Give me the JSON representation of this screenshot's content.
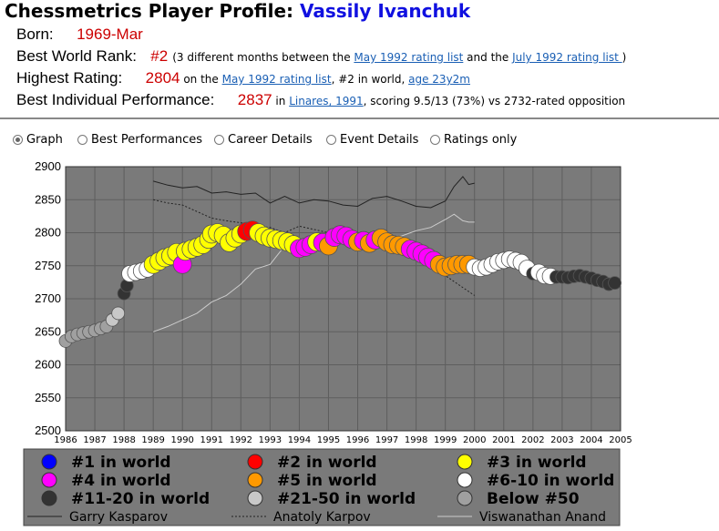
{
  "header": {
    "title_prefix": "Chessmetrics Player Profile: ",
    "player_name": "Vassily Ivanchuk"
  },
  "profile": {
    "born_label": "Born:",
    "born_value": "1969-Mar",
    "rank_label": "Best World Rank:",
    "rank_value": "#2",
    "rank_text1": "(3 different months between the ",
    "rank_link1": "May 1992 rating list",
    "rank_text2": " and the ",
    "rank_link2": "July 1992 rating list ",
    "rank_text3": ")",
    "high_label": "Highest Rating:",
    "high_value": "2804",
    "high_text1": " on the ",
    "high_link1": "May 1992 rating list",
    "high_text2": ", #2 in world, ",
    "high_link2": "age 23y2m",
    "perf_label": "Best Individual Performance:",
    "perf_value": "2837",
    "perf_text1": " in ",
    "perf_link1": "Linares, 1991",
    "perf_text2": ", scoring 9.5/13 (73%) vs 2732-rated opposition"
  },
  "view_options": [
    {
      "label": "Graph",
      "selected": true
    },
    {
      "label": "Best Performances",
      "selected": false
    },
    {
      "label": "Career Details",
      "selected": false
    },
    {
      "label": "Event Details",
      "selected": false
    },
    {
      "label": "Ratings only",
      "selected": false
    }
  ],
  "colors": {
    "plot_bg": "#7a7a7a",
    "grid": "#5e5e5e",
    "legend_bg": "#7a7a7a",
    "rank1": "#0000ff",
    "rank2": "#ff0000",
    "rank3": "#ffff00",
    "rank4": "#ff00ff",
    "rank5": "#ff9900",
    "rank6_10": "#ffffff",
    "rank11_20": "#333333",
    "rank21_50": "#c8c8c8",
    "below50": "#a0a0a0"
  },
  "chart_data": {
    "type": "scatter",
    "xlim": [
      1986,
      2005
    ],
    "ylim": [
      2500,
      2900
    ],
    "x_ticks": [
      "1986",
      "1987",
      "1988",
      "1989",
      "1990",
      "1991",
      "1992",
      "1993",
      "1994",
      "1995",
      "1996",
      "1997",
      "1998",
      "1999",
      "2000",
      "2001",
      "2002",
      "2003",
      "2004",
      "2005"
    ],
    "y_ticks": [
      "2500",
      "2550",
      "2600",
      "2650",
      "2700",
      "2750",
      "2800",
      "2850",
      "2900"
    ],
    "grid": true,
    "legend_placement": "bottom",
    "legend": [
      {
        "label": "#1 in world",
        "color": "#0000ff",
        "kind": "marker"
      },
      {
        "label": "#2 in world",
        "color": "#ff0000",
        "kind": "marker"
      },
      {
        "label": "#3 in world",
        "color": "#ffff00",
        "kind": "marker"
      },
      {
        "label": "#4 in world",
        "color": "#ff00ff",
        "kind": "marker"
      },
      {
        "label": "#5 in world",
        "color": "#ff9900",
        "kind": "marker"
      },
      {
        "label": "#6-10 in world",
        "color": "#ffffff",
        "kind": "marker"
      },
      {
        "label": "#11-20 in world",
        "color": "#333333",
        "kind": "marker"
      },
      {
        "label": "#21-50 in world",
        "color": "#c8c8c8",
        "kind": "marker"
      },
      {
        "label": "Below #50",
        "color": "#a0a0a0",
        "kind": "marker"
      },
      {
        "label": "Garry Kasparov",
        "color": "#222222",
        "kind": "solid"
      },
      {
        "label": "Anatoly Karpov",
        "color": "#222222",
        "kind": "dotted"
      },
      {
        "label": "Viswanathan Anand",
        "color": "#cccccc",
        "kind": "solid"
      }
    ],
    "ivanchuk": [
      [
        1986.0,
        2636,
        "below50"
      ],
      [
        1986.2,
        2643,
        "below50"
      ],
      [
        1986.4,
        2646,
        "below50"
      ],
      [
        1986.6,
        2648,
        "below50"
      ],
      [
        1986.8,
        2650,
        "below50"
      ],
      [
        1987.0,
        2652,
        "below50"
      ],
      [
        1987.2,
        2655,
        "below50"
      ],
      [
        1987.4,
        2658,
        "below50"
      ],
      [
        1987.6,
        2668,
        "r21_50"
      ],
      [
        1987.8,
        2678,
        "r21_50"
      ],
      [
        1988.0,
        2708,
        "r11_20"
      ],
      [
        1988.1,
        2720,
        "r11_20"
      ],
      [
        1988.2,
        2738,
        "r6_10"
      ],
      [
        1988.4,
        2740,
        "r6_10"
      ],
      [
        1988.6,
        2742,
        "r6_10"
      ],
      [
        1988.8,
        2745,
        "r6_10"
      ],
      [
        1989.0,
        2752,
        "r3"
      ],
      [
        1989.2,
        2757,
        "r3"
      ],
      [
        1989.4,
        2762,
        "r3"
      ],
      [
        1989.6,
        2765,
        "r3"
      ],
      [
        1989.8,
        2770,
        "r3"
      ],
      [
        1990.0,
        2752,
        "r4"
      ],
      [
        1990.1,
        2772,
        "r3"
      ],
      [
        1990.3,
        2775,
        "r3"
      ],
      [
        1990.5,
        2778,
        "r3"
      ],
      [
        1990.7,
        2782,
        "r3"
      ],
      [
        1990.9,
        2790,
        "r3"
      ],
      [
        1991.0,
        2798,
        "r3"
      ],
      [
        1991.2,
        2800,
        "r3"
      ],
      [
        1991.4,
        2796,
        "r3"
      ],
      [
        1991.6,
        2785,
        "r3"
      ],
      [
        1991.8,
        2792,
        "r3"
      ],
      [
        1992.0,
        2798,
        "r3"
      ],
      [
        1992.2,
        2802,
        "r2"
      ],
      [
        1992.4,
        2804,
        "r2"
      ],
      [
        1992.6,
        2800,
        "r3"
      ],
      [
        1992.8,
        2795,
        "r3"
      ],
      [
        1993.0,
        2792,
        "r3"
      ],
      [
        1993.2,
        2790,
        "r3"
      ],
      [
        1993.4,
        2788,
        "r3"
      ],
      [
        1993.6,
        2786,
        "r3"
      ],
      [
        1993.8,
        2782,
        "r3"
      ],
      [
        1994.0,
        2776,
        "r4"
      ],
      [
        1994.2,
        2778,
        "r4"
      ],
      [
        1994.4,
        2782,
        "r4"
      ],
      [
        1994.6,
        2786,
        "r3"
      ],
      [
        1994.8,
        2785,
        "r4"
      ],
      [
        1995.0,
        2780,
        "r5"
      ],
      [
        1995.2,
        2793,
        "r4"
      ],
      [
        1995.4,
        2797,
        "r4"
      ],
      [
        1995.6,
        2795,
        "r4"
      ],
      [
        1995.8,
        2790,
        "r4"
      ],
      [
        1996.0,
        2786,
        "r5"
      ],
      [
        1996.2,
        2788,
        "r4"
      ],
      [
        1996.4,
        2784,
        "r5"
      ],
      [
        1996.6,
        2789,
        "r4"
      ],
      [
        1996.8,
        2792,
        "r5"
      ],
      [
        1997.0,
        2786,
        "r5"
      ],
      [
        1997.2,
        2782,
        "r5"
      ],
      [
        1997.4,
        2781,
        "r5"
      ],
      [
        1997.6,
        2779,
        "r5"
      ],
      [
        1997.8,
        2775,
        "r4"
      ],
      [
        1998.0,
        2772,
        "r4"
      ],
      [
        1998.2,
        2768,
        "r4"
      ],
      [
        1998.4,
        2763,
        "r4"
      ],
      [
        1998.6,
        2758,
        "r4"
      ],
      [
        1998.8,
        2752,
        "r5"
      ],
      [
        1999.0,
        2748,
        "r5"
      ],
      [
        1999.2,
        2750,
        "r5"
      ],
      [
        1999.4,
        2752,
        "r5"
      ],
      [
        1999.6,
        2752,
        "r5"
      ],
      [
        1999.8,
        2752,
        "r5"
      ],
      [
        2000.0,
        2748,
        "r6_10"
      ],
      [
        2000.2,
        2746,
        "r6_10"
      ],
      [
        2000.4,
        2748,
        "r6_10"
      ],
      [
        2000.6,
        2752,
        "r6_10"
      ],
      [
        2000.8,
        2756,
        "r6_10"
      ],
      [
        2001.0,
        2758,
        "r6_10"
      ],
      [
        2001.2,
        2760,
        "r6_10"
      ],
      [
        2001.4,
        2758,
        "r6_10"
      ],
      [
        2001.6,
        2755,
        "r6_10"
      ],
      [
        2001.8,
        2746,
        "r6_10"
      ],
      [
        2002.0,
        2738,
        "r11_20"
      ],
      [
        2002.2,
        2740,
        "r6_10"
      ],
      [
        2002.4,
        2735,
        "r6_10"
      ],
      [
        2002.6,
        2734,
        "r6_10"
      ],
      [
        2002.8,
        2733,
        "r11_20"
      ],
      [
        2003.0,
        2733,
        "r11_20"
      ],
      [
        2003.2,
        2732,
        "r11_20"
      ],
      [
        2003.4,
        2734,
        "r11_20"
      ],
      [
        2003.6,
        2735,
        "r11_20"
      ],
      [
        2003.8,
        2733,
        "r11_20"
      ],
      [
        2004.0,
        2731,
        "r11_20"
      ],
      [
        2004.2,
        2728,
        "r11_20"
      ],
      [
        2004.4,
        2726,
        "r11_20"
      ],
      [
        2004.6,
        2722,
        "r11_20"
      ],
      [
        2004.8,
        2724,
        "r11_20"
      ]
    ],
    "kasparov": [
      [
        1989.0,
        2878
      ],
      [
        1989.5,
        2872
      ],
      [
        1990.0,
        2868
      ],
      [
        1990.5,
        2870
      ],
      [
        1991.0,
        2860
      ],
      [
        1991.5,
        2862
      ],
      [
        1992.0,
        2858
      ],
      [
        1992.5,
        2860
      ],
      [
        1993.0,
        2845
      ],
      [
        1993.5,
        2855
      ],
      [
        1994.0,
        2845
      ],
      [
        1994.5,
        2850
      ],
      [
        1995.0,
        2848
      ],
      [
        1995.5,
        2842
      ],
      [
        1996.0,
        2840
      ],
      [
        1996.5,
        2852
      ],
      [
        1997.0,
        2855
      ],
      [
        1997.5,
        2848
      ],
      [
        1998.0,
        2840
      ],
      [
        1998.5,
        2838
      ],
      [
        1999.0,
        2848
      ],
      [
        1999.3,
        2870
      ],
      [
        1999.6,
        2885
      ],
      [
        1999.8,
        2873
      ],
      [
        2000.0,
        2875
      ]
    ],
    "karpov": [
      [
        1989.0,
        2850
      ],
      [
        1989.5,
        2845
      ],
      [
        1990.0,
        2842
      ],
      [
        1990.5,
        2832
      ],
      [
        1991.0,
        2822
      ],
      [
        1991.5,
        2818
      ],
      [
        1992.0,
        2815
      ],
      [
        1992.5,
        2810
      ],
      [
        1993.0,
        2808
      ],
      [
        1993.5,
        2800
      ],
      [
        1994.0,
        2810
      ],
      [
        1994.5,
        2805
      ],
      [
        1995.0,
        2800
      ],
      [
        1995.5,
        2802
      ],
      [
        1996.0,
        2795
      ],
      [
        1996.5,
        2796
      ],
      [
        1997.0,
        2790
      ],
      [
        1997.5,
        2785
      ],
      [
        1998.0,
        2770
      ],
      [
        1998.5,
        2750
      ],
      [
        1999.0,
        2735
      ],
      [
        1999.5,
        2720
      ],
      [
        2000.0,
        2705
      ]
    ],
    "anand": [
      [
        1989.0,
        2650
      ],
      [
        1989.5,
        2658
      ],
      [
        1990.0,
        2668
      ],
      [
        1990.5,
        2678
      ],
      [
        1991.0,
        2695
      ],
      [
        1991.5,
        2705
      ],
      [
        1992.0,
        2722
      ],
      [
        1992.5,
        2745
      ],
      [
        1993.0,
        2752
      ],
      [
        1993.5,
        2780
      ],
      [
        1994.0,
        2790
      ],
      [
        1994.5,
        2790
      ],
      [
        1995.0,
        2786
      ],
      [
        1995.5,
        2790
      ],
      [
        1996.0,
        2780
      ],
      [
        1996.5,
        2788
      ],
      [
        1997.0,
        2790
      ],
      [
        1997.5,
        2795
      ],
      [
        1998.0,
        2803
      ],
      [
        1998.5,
        2808
      ],
      [
        1999.0,
        2820
      ],
      [
        1999.3,
        2828
      ],
      [
        1999.6,
        2818
      ],
      [
        1999.8,
        2816
      ],
      [
        2000.0,
        2816
      ]
    ]
  }
}
